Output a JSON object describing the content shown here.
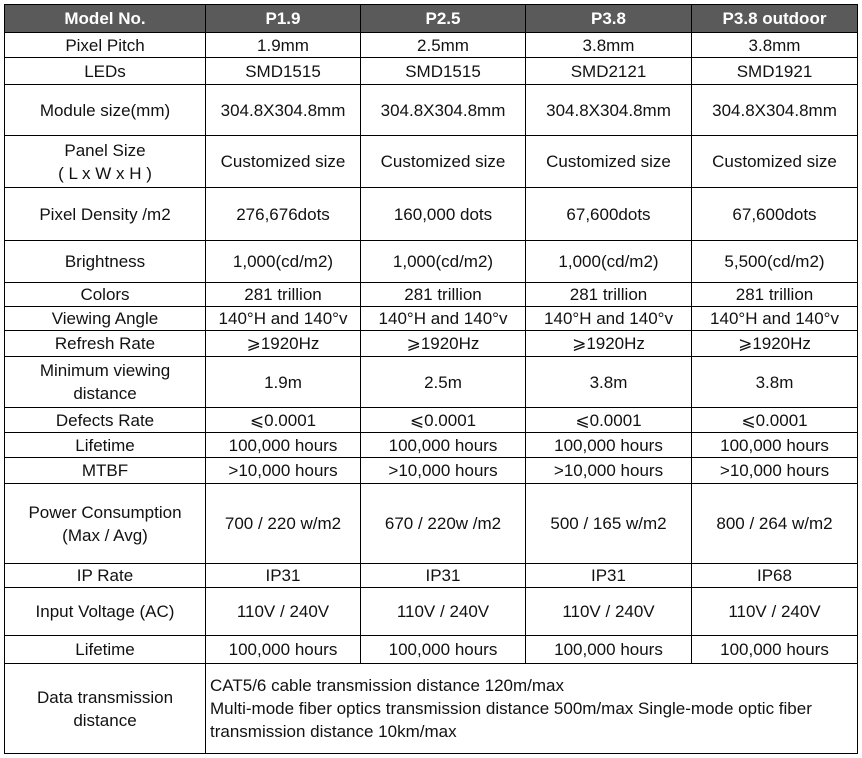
{
  "table": {
    "header": [
      "Model No.",
      "P1.9",
      "P2.5",
      "P3.8",
      "P3.8 outdoor"
    ],
    "rows": [
      [
        "Pixel Pitch",
        "1.9mm",
        "2.5mm",
        "3.8mm",
        "3.8mm"
      ],
      [
        "LEDs",
        "SMD1515",
        "SMD1515",
        "SMD2121",
        "SMD1921"
      ],
      [
        "Module size(mm)",
        "304.8X304.8mm",
        "304.8X304.8mm",
        "304.8X304.8mm",
        "304.8X304.8mm"
      ],
      [
        "Panel Size\n( L x W x H )",
        "Customized size",
        "Customized size",
        "Customized size",
        "Customized size"
      ],
      [
        "Pixel Density /m2",
        "276,676dots",
        "160,000 dots",
        "67,600dots",
        "67,600dots"
      ],
      [
        "Brightness",
        "1,000(cd/m2)",
        "1,000(cd/m2)",
        "1,000(cd/m2)",
        "5,500(cd/m2)"
      ],
      [
        "Colors",
        "281 trillion",
        "281 trillion",
        "281 trillion",
        "281 trillion"
      ],
      [
        "Viewing Angle",
        "140°H and 140°v",
        "140°H and 140°v",
        "140°H and 140°v",
        "140°H and 140°v"
      ],
      [
        "Refresh Rate",
        "⩾1920Hz",
        "⩾1920Hz",
        "⩾1920Hz",
        "⩾1920Hz"
      ],
      [
        "Minimum viewing\ndistance",
        "1.9m",
        "2.5m",
        "3.8m",
        "3.8m"
      ],
      [
        "Defects Rate",
        "⩽0.0001",
        "⩽0.0001",
        "⩽0.0001",
        "⩽0.0001"
      ],
      [
        "Lifetime",
        "100,000 hours",
        "100,000 hours",
        "100,000 hours",
        "100,000 hours"
      ],
      [
        "MTBF",
        ">10,000 hours",
        ">10,000 hours",
        ">10,000 hours",
        ">10,000 hours"
      ],
      [
        "Power Consumption\n(Max / Avg)",
        "700 / 220 w/m2",
        "670 / 220w /m2",
        "500 / 165 w/m2",
        "800 / 264 w/m2"
      ],
      [
        "IP Rate",
        "IP31",
        "IP31",
        "IP31",
        "IP68"
      ],
      [
        "Input Voltage (AC)",
        "110V / 240V",
        "110V / 240V",
        "110V / 240V",
        "110V / 240V"
      ],
      [
        "Lifetime",
        "100,000 hours",
        "100,000 hours",
        "100,000 hours",
        "100,000 hours"
      ],
      [
        "Data transmission\ndistance",
        "CAT5/6 cable transmission distance 120m/max\nMulti-mode fiber optics transmission distance 500m/max Single-mode optic fiber transmission distance 10km/max"
      ]
    ]
  }
}
